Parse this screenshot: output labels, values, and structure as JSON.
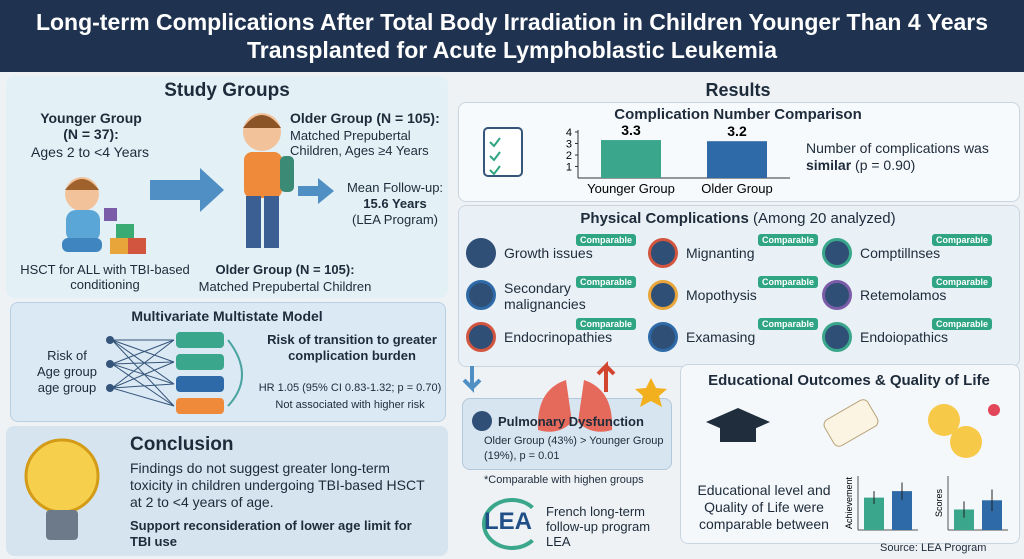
{
  "header": {
    "title": "Long-term Complications After Total Body Irradiation in Children Younger Than 4 Years Transplanted for Acute Lymphoblastic Leukemia"
  },
  "study_groups": {
    "title": "Study Groups",
    "younger_label": "Younger Group (N = 37):",
    "younger_ages": "Ages 2 to <4 Years",
    "older_label": "Older Group (N = 105):",
    "older_detail": "Matched Prepubertal Children, Ages ≥4 Years",
    "followup_label": "Mean Follow-up:",
    "followup_value": "15.6 Years",
    "followup_source": "(LEA Program)",
    "conditioning": "HSCT for ALL with TBI-based conditioning",
    "older_label_2": "Older Group (N = 105):",
    "older_detail_2": "Matched Prepubertal Children"
  },
  "model": {
    "title": "Multivariate Multistate Model",
    "input": "Risk of Age group age group",
    "risk_title": "Risk of transition to greater complication burden",
    "hr": "HR 1.05 (95% CI 0.83-1.32; p = 0.70)",
    "note": "Not associated with higher risk"
  },
  "conclusion": {
    "title": "Conclusion",
    "text": "Findings do not suggest greater long-term toxicity in children undergoing TBI-based HSCT at 2 to <4 years of age.",
    "recommendation": "Support reconsideration of lower age limit for TBI use"
  },
  "results": {
    "title": "Results"
  },
  "comparison": {
    "title": "Complication Number Comparison",
    "chart_data": {
      "type": "bar",
      "categories": [
        "Younger Group",
        "Older Group"
      ],
      "values": [
        3.3,
        3.2
      ],
      "colors": [
        "#3aa68c",
        "#2f6aa8"
      ],
      "ylim": [
        0,
        4
      ],
      "yticks": [
        1,
        2,
        3,
        4
      ]
    },
    "note_text": "Number of complications was",
    "note_bold": "similar",
    "note_p": "(p = 0.90)"
  },
  "physical": {
    "title": "Physical Complications",
    "subtitle": "(Among 20 analyzed)",
    "badge": "Comparable",
    "items": [
      "Growth issues",
      "Mignanting",
      "Comptillnses",
      "Secondary malignancies",
      "Mopothysis",
      "Retemolamos",
      "Endocrinopathies",
      "Examasing",
      "Endoiopathics"
    ]
  },
  "pulmonary": {
    "title": "Pulmonary Dysfunction",
    "detail": "Older Group (43%) > Younger Group (19%), p = 0.01"
  },
  "footnote": "*Comparable with highen groups",
  "lea": {
    "logo": "LEA",
    "text": "French long-term follow-up program LEA"
  },
  "education": {
    "title": "Educational Outcomes & Quality of Life",
    "text": "Educational level and Quality of Life were comparable between",
    "charts": [
      {
        "type": "bar",
        "ylabel": "Achievement",
        "values": [
          0.6,
          0.72
        ],
        "errors": [
          0.12,
          0.16
        ],
        "colors": [
          "#3aa68c",
          "#2f6aa8"
        ],
        "ylim": [
          0,
          1
        ]
      },
      {
        "type": "bar",
        "ylabel": "Scores",
        "values": [
          0.38,
          0.55
        ],
        "errors": [
          0.15,
          0.2
        ],
        "colors": [
          "#3aa68c",
          "#2f6aa8"
        ],
        "ylim": [
          0,
          1
        ]
      }
    ]
  },
  "source": "Source: LEA Program"
}
